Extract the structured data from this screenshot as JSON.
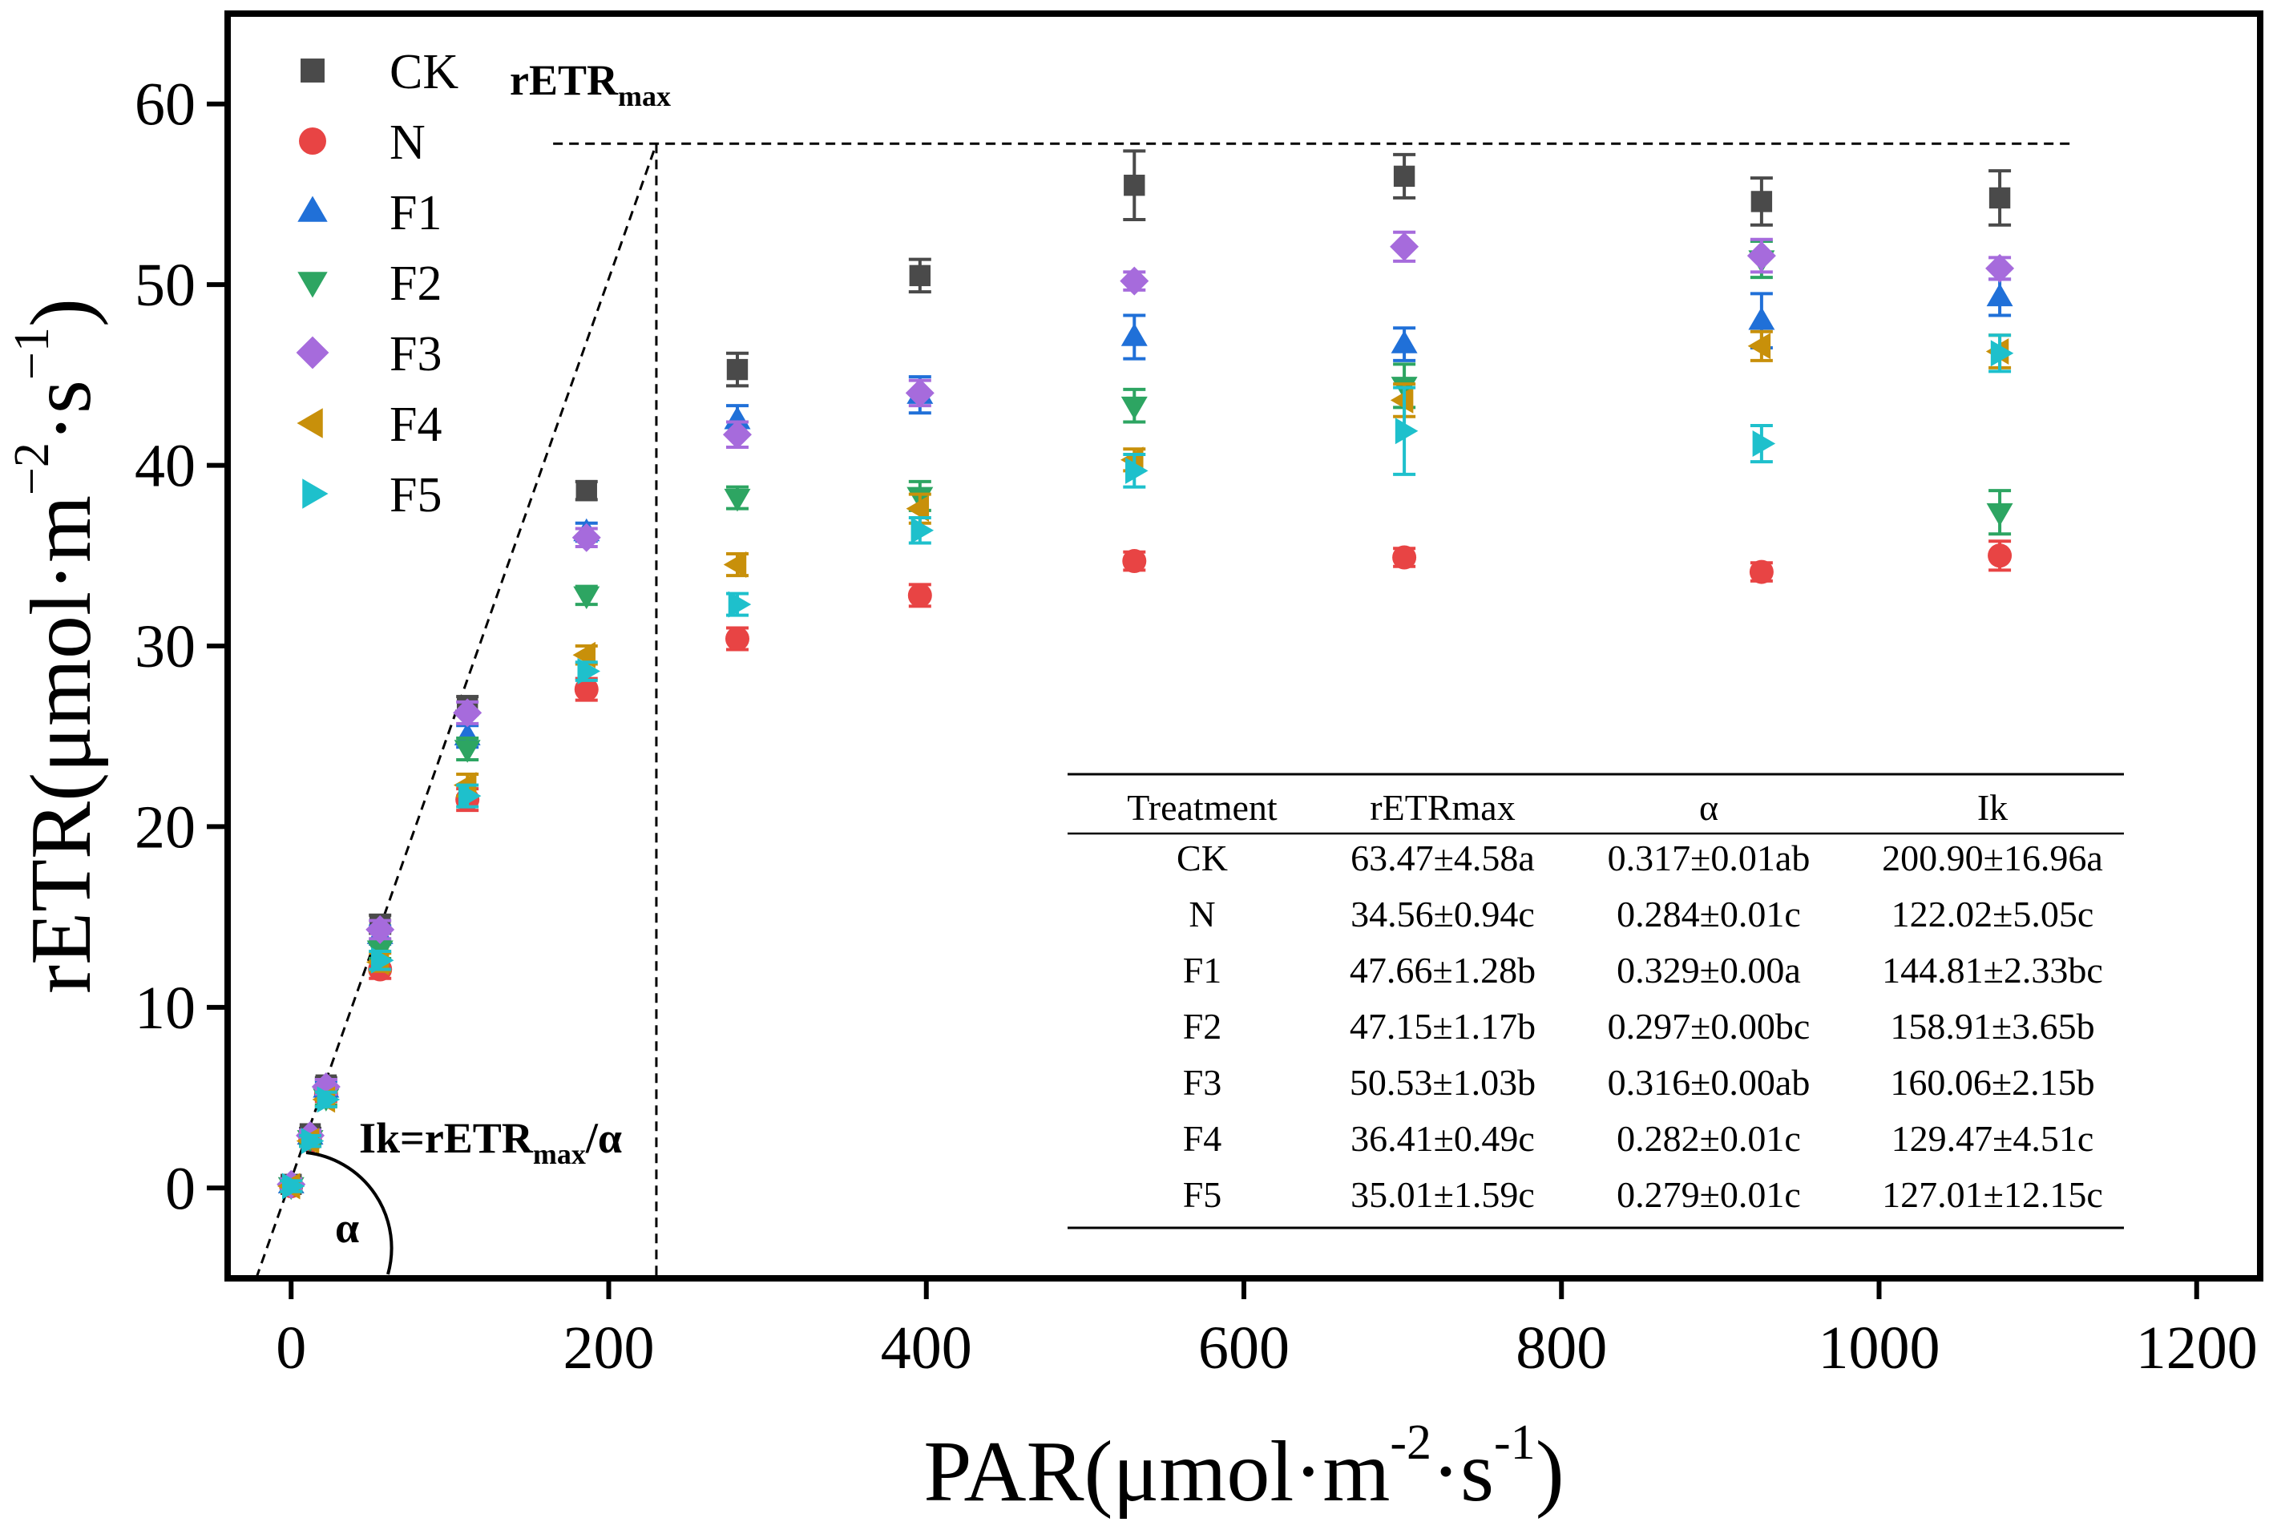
{
  "chart_data": {
    "type": "scatter",
    "title": "",
    "xlabel": {
      "main": "PAR(μmol·m",
      "sup1": "-2",
      "mid": "·s",
      "sup2": "-1",
      "close": ")"
    },
    "ylabel": {
      "main": "rETR(μmol·m",
      "sup1": "−2",
      "mid": "·s",
      "sup2": "−1",
      "close": ")"
    },
    "xlim": [
      -40,
      1240
    ],
    "ylim": [
      -5,
      65
    ],
    "xticks": [
      0,
      200,
      400,
      600,
      800,
      1000,
      1200
    ],
    "yticks": [
      0,
      10,
      20,
      30,
      40,
      50,
      60
    ],
    "legend_position": "top-left",
    "x": [
      0,
      12,
      22,
      56,
      111,
      186,
      281,
      396,
      531,
      701,
      926,
      1076
    ],
    "series": [
      {
        "name": "CK",
        "marker": "square",
        "color": "#4a4a4a",
        "values": [
          0.2,
          3.0,
          5.7,
          14.6,
          26.7,
          38.6,
          45.3,
          50.5,
          55.5,
          56.0,
          54.6,
          54.8
        ],
        "errors": [
          0.3,
          0.3,
          0.4,
          0.5,
          0.5,
          0.5,
          0.9,
          0.9,
          1.9,
          1.2,
          1.3,
          1.5
        ]
      },
      {
        "name": "N",
        "marker": "circle",
        "color": "#e84444",
        "values": [
          0.1,
          2.6,
          5.2,
          12.1,
          21.5,
          27.6,
          30.4,
          32.8,
          34.7,
          34.9,
          34.1,
          35.0
        ],
        "errors": [
          0.3,
          0.3,
          0.4,
          0.5,
          0.6,
          0.6,
          0.6,
          0.6,
          0.5,
          0.5,
          0.5,
          0.8
        ]
      },
      {
        "name": "F1",
        "marker": "triangle-up",
        "color": "#2070d8",
        "values": [
          0.2,
          2.9,
          5.5,
          14.0,
          25.0,
          36.3,
          42.5,
          43.9,
          47.1,
          46.7,
          48.0,
          49.3
        ],
        "errors": [
          0.3,
          0.3,
          0.4,
          0.5,
          0.6,
          0.5,
          0.8,
          1.0,
          1.2,
          0.9,
          1.5,
          1.0
        ]
      },
      {
        "name": "F2",
        "marker": "triangle-down",
        "color": "#2da562",
        "values": [
          0.1,
          2.7,
          5.0,
          13.2,
          24.3,
          32.8,
          38.2,
          38.3,
          43.3,
          44.4,
          51.4,
          37.4
        ],
        "errors": [
          0.3,
          0.3,
          0.4,
          0.5,
          0.6,
          0.5,
          0.6,
          0.8,
          0.9,
          1.2,
          1.0,
          1.2
        ]
      },
      {
        "name": "F3",
        "marker": "diamond",
        "color": "#a66bdc",
        "values": [
          0.2,
          2.9,
          5.6,
          14.3,
          26.3,
          36.0,
          41.7,
          44.0,
          50.2,
          52.1,
          51.6,
          50.9
        ],
        "errors": [
          0.3,
          0.3,
          0.4,
          0.5,
          0.6,
          0.5,
          0.7,
          0.7,
          0.5,
          0.8,
          0.9,
          0.6
        ]
      },
      {
        "name": "F4",
        "marker": "triangle-left",
        "color": "#c8900a",
        "values": [
          0.1,
          2.6,
          4.9,
          12.5,
          22.3,
          29.5,
          34.5,
          37.6,
          40.3,
          43.6,
          46.6,
          46.3
        ],
        "errors": [
          0.3,
          0.3,
          0.4,
          0.5,
          0.6,
          0.5,
          0.6,
          0.8,
          0.6,
          0.9,
          0.8,
          0.9
        ]
      },
      {
        "name": "F5",
        "marker": "triangle-right",
        "color": "#1ec0cc",
        "values": [
          0.1,
          2.6,
          4.9,
          12.6,
          21.7,
          28.6,
          32.3,
          36.4,
          39.7,
          41.9,
          41.2,
          46.2
        ],
        "errors": [
          0.3,
          0.3,
          0.4,
          0.5,
          0.6,
          0.5,
          0.6,
          0.7,
          0.9,
          2.4,
          1.0,
          1.0
        ]
      }
    ],
    "annotations": {
      "retr_max": {
        "text": "rETR",
        "sub": "max",
        "level": 57.8
      },
      "ik": {
        "text": "Ik=rETR",
        "sub": "max",
        "after": "/α",
        "value": 230
      },
      "alpha": "α"
    },
    "table": {
      "headers": [
        "Treatment",
        "rETRmax",
        "α",
        "Ik"
      ],
      "rows": [
        [
          "CK",
          "63.47±4.58a",
          "0.317±0.01ab",
          "200.90±16.96a"
        ],
        [
          "N",
          "34.56±0.94c",
          "0.284±0.01c",
          "122.02±5.05c"
        ],
        [
          "F1",
          "47.66±1.28b",
          "0.329±0.00a",
          "144.81±2.33bc"
        ],
        [
          "F2",
          "47.15±1.17b",
          "0.297±0.00bc",
          "158.91±3.65b"
        ],
        [
          "F3",
          "50.53±1.03b",
          "0.316±0.00ab",
          "160.06±2.15b"
        ],
        [
          "F4",
          "36.41±0.49c",
          "0.282±0.01c",
          "129.47±4.51c"
        ],
        [
          "F5",
          "35.01±1.59c",
          "0.279±0.01c",
          "127.01±12.15c"
        ]
      ]
    }
  }
}
